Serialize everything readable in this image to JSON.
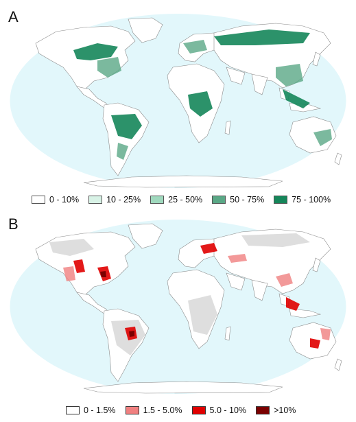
{
  "panels": [
    {
      "letter": "A",
      "legend": [
        {
          "label": "0 - 10%",
          "color": "#ffffff"
        },
        {
          "label": "10 - 25%",
          "color": "#d8f2e6"
        },
        {
          "label": "25 - 50%",
          "color": "#9fd8bd"
        },
        {
          "label": "50 - 75%",
          "color": "#5aa886"
        },
        {
          "label": "75 - 100%",
          "color": "#15865a"
        }
      ]
    },
    {
      "letter": "B",
      "legend": [
        {
          "label": "0 - 1.5%",
          "color": "#ffffff"
        },
        {
          "label": "1.5 - 5.0%",
          "color": "#f08080"
        },
        {
          "label": "5.0 - 10%",
          "color": "#e00000"
        },
        {
          "label": ">10%",
          "color": "#7a0000"
        }
      ]
    }
  ],
  "colors": {
    "ocean": "#e2f7fb",
    "land": "#ffffff",
    "border": "#8a8a8a",
    "no_data": "#d6d6d6"
  }
}
